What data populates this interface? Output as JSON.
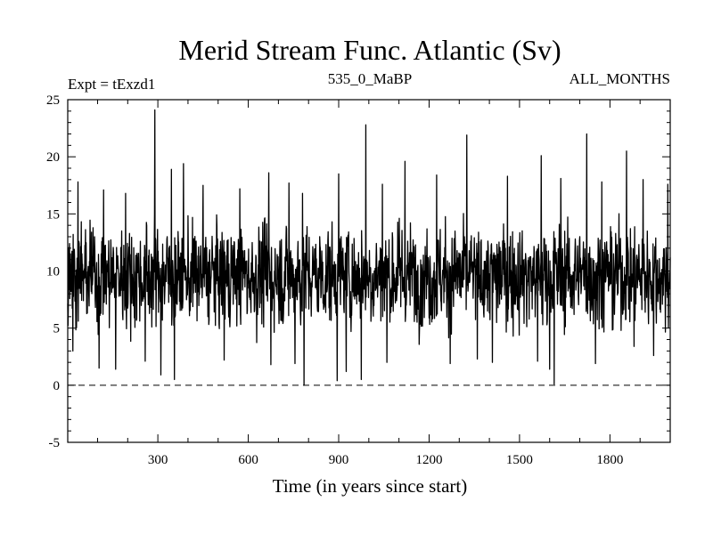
{
  "chart_data": {
    "type": "line",
    "title": "Merid Stream Func. Atlantic (Sv)",
    "subtitle_left": "Expt = tExzd1",
    "subtitle_center": "535_0_MaBP",
    "subtitle_right": "ALL_MONTHS",
    "xlabel": "Time (in years since start)",
    "ylabel": "",
    "xlim": [
      1,
      2000
    ],
    "ylim": [
      -5,
      25
    ],
    "x_ticks": [
      300,
      600,
      900,
      1200,
      1500,
      1800
    ],
    "y_ticks": [
      -5,
      0,
      5,
      10,
      15,
      20,
      25
    ],
    "reference_line": {
      "y": 0,
      "style": "dashed"
    },
    "grid": false,
    "series": [
      {
        "color": "#000000",
        "sampling": "annual, one value per year from 1 to 2000 (noisy, mean ~9.5 Sv, sd ~3 Sv)",
        "peaks": [
          {
            "x": 35,
            "y": 17.8
          },
          {
            "x": 120,
            "y": 17.1
          },
          {
            "x": 193,
            "y": 16.8
          },
          {
            "x": 290,
            "y": 24.1
          },
          {
            "x": 345,
            "y": 18.9
          },
          {
            "x": 385,
            "y": 19.4
          },
          {
            "x": 450,
            "y": 17.5
          },
          {
            "x": 572,
            "y": 17.2
          },
          {
            "x": 668,
            "y": 18.6
          },
          {
            "x": 735,
            "y": 17.7
          },
          {
            "x": 780,
            "y": 16.8
          },
          {
            "x": 900,
            "y": 18.5
          },
          {
            "x": 990,
            "y": 22.8
          },
          {
            "x": 1045,
            "y": 17.6
          },
          {
            "x": 1120,
            "y": 19.6
          },
          {
            "x": 1225,
            "y": 18.4
          },
          {
            "x": 1325,
            "y": 21.9
          },
          {
            "x": 1410,
            "y": 19.2
          },
          {
            "x": 1460,
            "y": 18.3
          },
          {
            "x": 1572,
            "y": 20.1
          },
          {
            "x": 1637,
            "y": 18.1
          },
          {
            "x": 1723,
            "y": 22.0
          },
          {
            "x": 1773,
            "y": 17.8
          },
          {
            "x": 1855,
            "y": 20.5
          },
          {
            "x": 1910,
            "y": 18.0
          },
          {
            "x": 1992,
            "y": 17.6
          }
        ],
        "troughs": [
          {
            "x": 18,
            "y": 3.0
          },
          {
            "x": 105,
            "y": 1.5
          },
          {
            "x": 160,
            "y": 1.4
          },
          {
            "x": 258,
            "y": 2.1
          },
          {
            "x": 310,
            "y": 0.9
          },
          {
            "x": 355,
            "y": 0.5
          },
          {
            "x": 520,
            "y": 2.2
          },
          {
            "x": 675,
            "y": 1.8
          },
          {
            "x": 755,
            "y": 1.9
          },
          {
            "x": 785,
            "y": 0.0
          },
          {
            "x": 895,
            "y": 0.4
          },
          {
            "x": 925,
            "y": 1.2
          },
          {
            "x": 975,
            "y": 0.5
          },
          {
            "x": 1060,
            "y": 2.0
          },
          {
            "x": 1270,
            "y": 1.9
          },
          {
            "x": 1360,
            "y": 2.3
          },
          {
            "x": 1410,
            "y": 2.0
          },
          {
            "x": 1560,
            "y": 2.1
          },
          {
            "x": 1600,
            "y": 1.4
          },
          {
            "x": 1615,
            "y": 0.1
          },
          {
            "x": 1752,
            "y": 1.9
          },
          {
            "x": 1880,
            "y": 3.4
          },
          {
            "x": 1945,
            "y": 2.6
          }
        ]
      }
    ]
  }
}
